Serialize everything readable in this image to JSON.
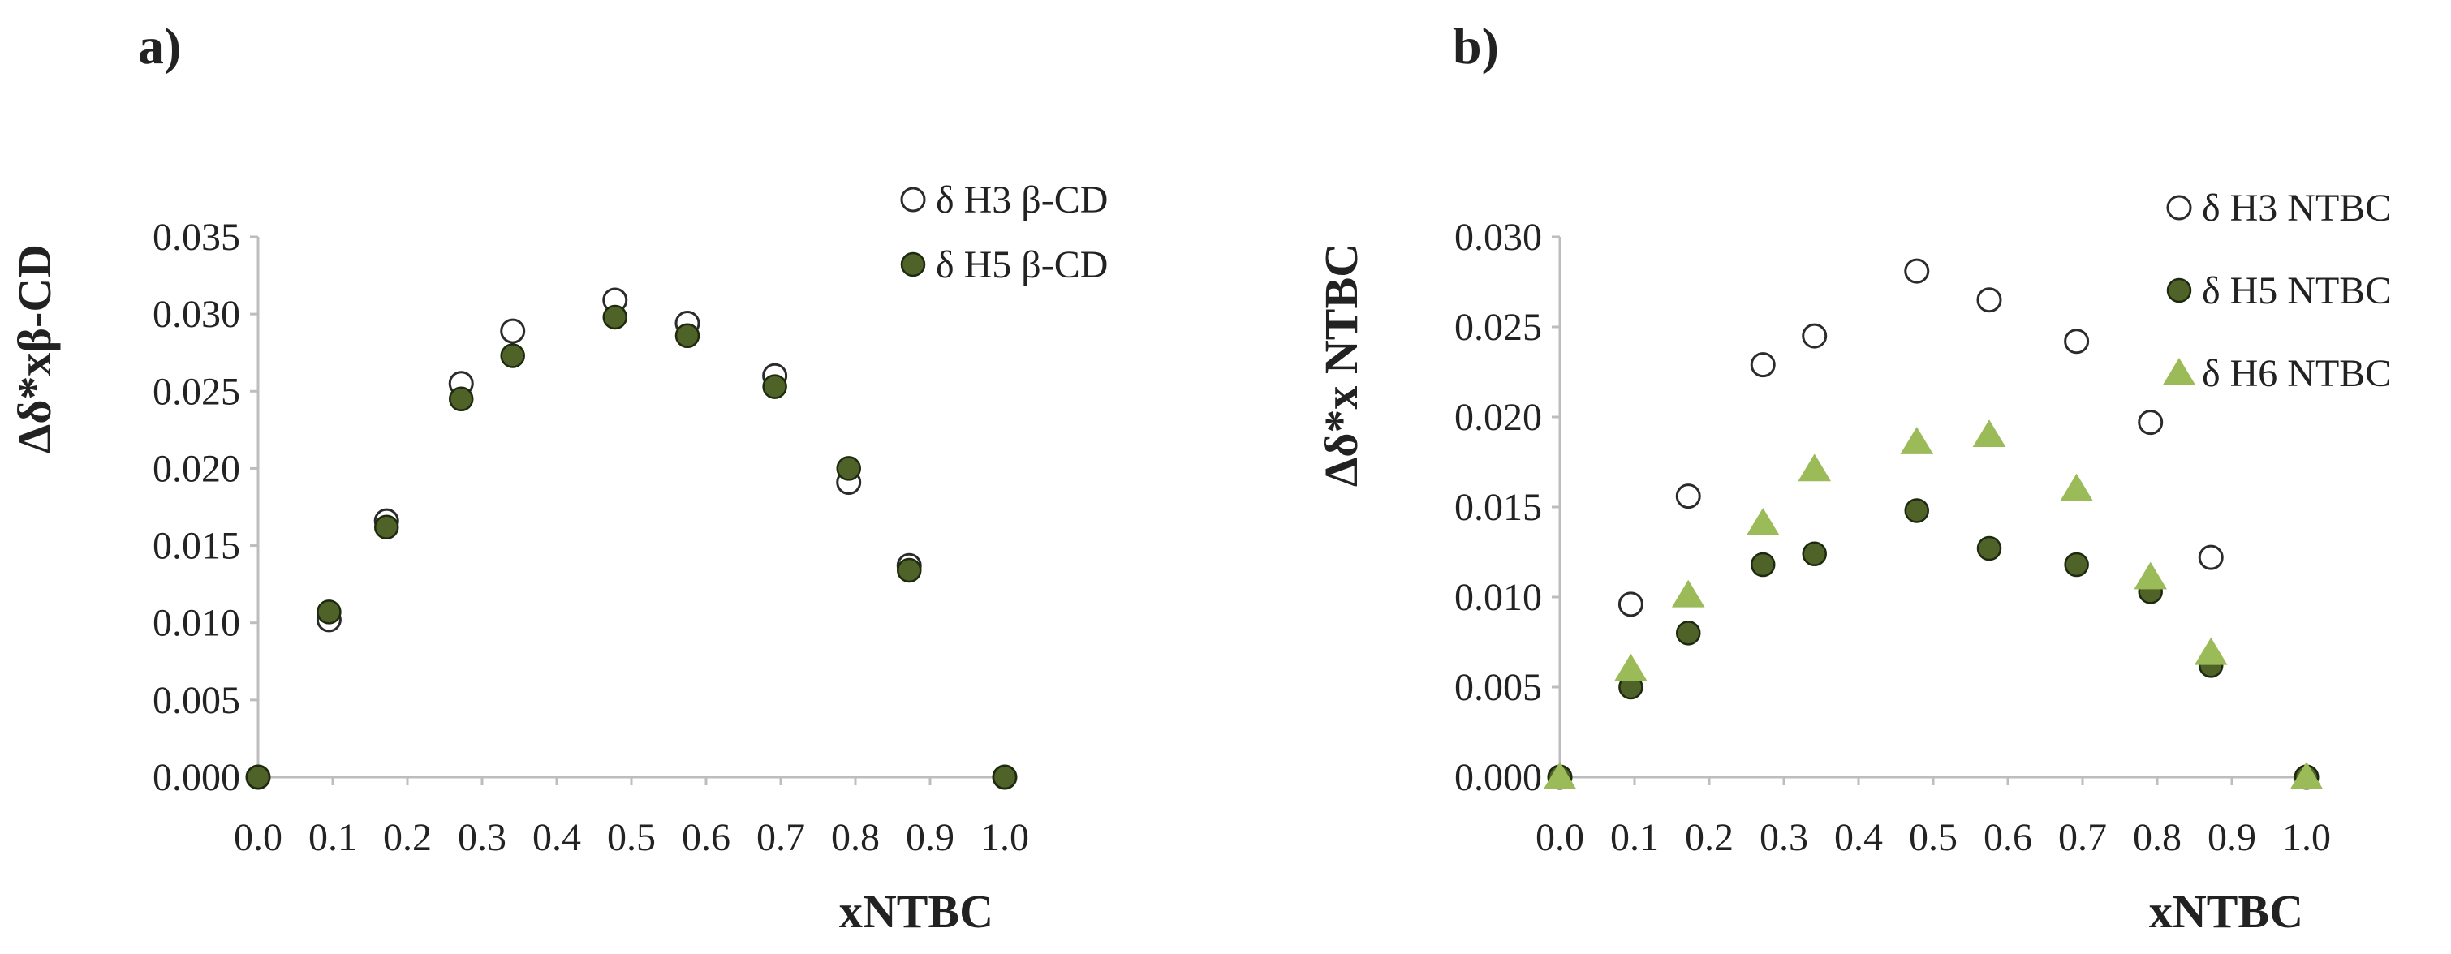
{
  "chart_data": [
    {
      "type": "scatter",
      "panel_label": "a)",
      "xlabel": "xNTBC",
      "ylabel": "Δδ*xβ-CD",
      "xlim": [
        0,
        1
      ],
      "ylim": [
        0,
        0.035
      ],
      "grid": false,
      "legend_position": "top-right",
      "x_ticks": [
        0.0,
        0.1,
        0.2,
        0.3,
        0.4,
        0.5,
        0.6,
        0.7,
        0.8,
        0.9,
        1.0
      ],
      "x_tick_labels": [
        "0.0",
        "0.1",
        "0.2",
        "0.3",
        "0.4",
        "0.5",
        "0.6",
        "0.7",
        "0.8",
        "0.9",
        "1.0"
      ],
      "y_ticks": [
        0,
        0.005,
        0.01,
        0.015,
        0.02,
        0.025,
        0.03,
        0.035
      ],
      "y_tick_labels": [
        "0.000",
        "0.005",
        "0.010",
        "0.015",
        "0.020",
        "0.025",
        "0.030",
        "0.035"
      ],
      "series": [
        {
          "name": "δ H3 β-CD",
          "marker": "circle-open",
          "color": "#333333",
          "x": [
            0.0,
            0.095,
            0.172,
            0.272,
            0.341,
            0.478,
            0.575,
            0.692,
            0.791,
            0.872,
            1.0
          ],
          "y": [
            0.0,
            0.0102,
            0.0166,
            0.0255,
            0.0289,
            0.0309,
            0.0294,
            0.026,
            0.0191,
            0.0137,
            0.0
          ]
        },
        {
          "name": "δ H5 β-CD",
          "marker": "circle-filled",
          "color": "#4f6228",
          "x": [
            0.0,
            0.095,
            0.172,
            0.272,
            0.341,
            0.478,
            0.575,
            0.692,
            0.791,
            0.872,
            1.0
          ],
          "y": [
            0.0,
            0.0107,
            0.0162,
            0.0245,
            0.0273,
            0.0298,
            0.0286,
            0.0253,
            0.02,
            0.0134,
            0.0
          ]
        }
      ]
    },
    {
      "type": "scatter",
      "panel_label": "b)",
      "xlabel": "xNTBC",
      "ylabel": "Δδ*x NTBC",
      "xlim": [
        0,
        1
      ],
      "ylim": [
        0,
        0.03
      ],
      "grid": false,
      "legend_position": "top-right",
      "x_ticks": [
        0.0,
        0.1,
        0.2,
        0.3,
        0.4,
        0.5,
        0.6,
        0.7,
        0.8,
        0.9,
        1.0
      ],
      "x_tick_labels": [
        "0.0",
        "0.1",
        "0.2",
        "0.3",
        "0.4",
        "0.5",
        "0.6",
        "0.7",
        "0.8",
        "0.9",
        "1.0"
      ],
      "y_ticks": [
        0,
        0.005,
        0.01,
        0.015,
        0.02,
        0.025,
        0.03
      ],
      "y_tick_labels": [
        "0.000",
        "0.005",
        "0.010",
        "0.015",
        "0.020",
        "0.025",
        "0.030"
      ],
      "series": [
        {
          "name": "δ H3 NTBC",
          "marker": "circle-open",
          "color": "#333333",
          "x": [
            0.0,
            0.095,
            0.172,
            0.272,
            0.341,
            0.478,
            0.575,
            0.692,
            0.791,
            0.872,
            1.0
          ],
          "y": [
            0.0,
            0.0096,
            0.0156,
            0.0229,
            0.0245,
            0.0281,
            0.0265,
            0.0242,
            0.0197,
            0.0122,
            0.0
          ]
        },
        {
          "name": "δ H5 NTBC",
          "marker": "circle-filled",
          "color": "#4f6228",
          "x": [
            0.0,
            0.095,
            0.172,
            0.272,
            0.341,
            0.478,
            0.575,
            0.692,
            0.791,
            0.872,
            1.0
          ],
          "y": [
            0.0,
            0.005,
            0.008,
            0.0118,
            0.0124,
            0.0148,
            0.0127,
            0.0118,
            0.0103,
            0.0062,
            0.0
          ]
        },
        {
          "name": "δ H6 NTBC",
          "marker": "triangle-filled",
          "color": "#9bbb59",
          "x": [
            0.0,
            0.095,
            0.172,
            0.272,
            0.341,
            0.478,
            0.575,
            0.692,
            0.791,
            0.872,
            1.0
          ],
          "y": [
            0.0,
            0.006,
            0.0101,
            0.0141,
            0.0171,
            0.0186,
            0.019,
            0.016,
            0.0111,
            0.0069,
            0.0
          ]
        }
      ]
    }
  ]
}
